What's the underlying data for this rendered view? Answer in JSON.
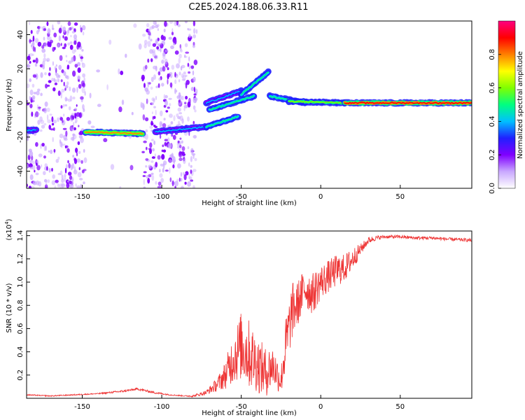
{
  "figure": {
    "title": "C2E5.2024.188.06.33.R11"
  },
  "colors": {
    "snr_line": "#ee3333",
    "colormap": [
      "#ffffff",
      "#c9a8ff",
      "#8000ff",
      "#2020ff",
      "#00c0ff",
      "#00ff80",
      "#80ff00",
      "#ffff00",
      "#ff8000",
      "#ff0000",
      "#ff0080"
    ]
  },
  "chart_data": [
    {
      "type": "heatmap",
      "xlabel": "Height of straight line (km)",
      "ylabel": "Frequency (Hz)",
      "xlim": [
        -185,
        95
      ],
      "ylim": [
        -50,
        48
      ],
      "xticks": [
        -150,
        -100,
        -50,
        0,
        50
      ],
      "xtick_labels": [
        "-150",
        "-100",
        "-50",
        "0",
        "50"
      ],
      "yticks": [
        -40,
        -20,
        0,
        20,
        40
      ],
      "ytick_labels": [
        "-40",
        "-20",
        "0",
        "20",
        "40"
      ],
      "colorbar": {
        "label": "Normalized spectral amplitude",
        "range": [
          0,
          1
        ],
        "ticks": [
          0.0,
          0.2,
          0.4,
          0.6,
          0.8
        ],
        "tick_labels": [
          "0.0",
          "0.2",
          "0.4",
          "0.6",
          "0.8"
        ]
      },
      "noise_regions": [
        {
          "x": [
            -185,
            -148
          ],
          "y": [
            -50,
            48
          ],
          "density": 0.9
        },
        {
          "x": [
            -148,
            -112
          ],
          "y": [
            -50,
            48
          ],
          "density": 0.05
        },
        {
          "x": [
            -112,
            -78
          ],
          "y": [
            -50,
            48
          ],
          "density": 0.9
        }
      ],
      "traces": [
        {
          "x": [
            -185,
            -179
          ],
          "y": [
            -16,
            -16
          ],
          "amplitude": 0.35
        },
        {
          "x": [
            -148,
            -112
          ],
          "y": [
            -17,
            -18
          ],
          "amplitude": 0.75
        },
        {
          "x": [
            -104,
            -72
          ],
          "y": [
            -17,
            -14
          ],
          "amplitude": 0.35
        },
        {
          "x": [
            -72,
            -52
          ],
          "y": [
            -14,
            -8
          ],
          "amplitude": 0.45
        },
        {
          "x": [
            -70,
            -42
          ],
          "y": [
            -4,
            4
          ],
          "amplitude": 0.45
        },
        {
          "x": [
            -72,
            -50
          ],
          "y": [
            0,
            7
          ],
          "amplitude": 0.4
        },
        {
          "x": [
            -50,
            -33
          ],
          "y": [
            5,
            18
          ],
          "amplitude": 0.45
        },
        {
          "x": [
            -32,
            -10
          ],
          "y": [
            4,
            0
          ],
          "amplitude": 0.5
        },
        {
          "x": [
            -20,
            15
          ],
          "y": [
            1,
            0
          ],
          "amplitude": 0.55
        },
        {
          "x": [
            15,
            95
          ],
          "y": [
            0,
            0
          ],
          "amplitude": 0.9
        }
      ]
    },
    {
      "type": "line",
      "xlabel": "Height of straight line (km)",
      "ylabel": "SNR (10 * v/v)",
      "y_multiplier": "(x10",
      "y_multiplier_exp": "4",
      "y_multiplier_close": ")",
      "xlim": [
        -185,
        95
      ],
      "ylim": [
        0,
        1.44
      ],
      "xticks": [
        -150,
        -100,
        -50,
        0,
        50
      ],
      "xtick_labels": [
        "-150",
        "-100",
        "-50",
        "0",
        "50"
      ],
      "yticks": [
        0.2,
        0.4,
        0.6,
        0.8,
        1.0,
        1.2,
        1.4
      ],
      "ytick_labels": [
        "0.2",
        "0.4",
        "0.6",
        "0.8",
        "1.0",
        "1.2",
        "1.4"
      ],
      "series": [
        {
          "x": [
            -185,
            -170,
            -155,
            -140,
            -125,
            -115,
            -105,
            -95,
            -85,
            -80,
            -72,
            -65,
            -60,
            -55,
            -50,
            -45,
            -40,
            -35,
            -30,
            -25,
            -22,
            -18,
            -15,
            -10,
            -5,
            0,
            5,
            10,
            15,
            20,
            25,
            30,
            35,
            40,
            50,
            60,
            70,
            80,
            95
          ],
          "y": [
            0.03,
            0.02,
            0.03,
            0.04,
            0.06,
            0.08,
            0.05,
            0.03,
            0.02,
            0.02,
            0.05,
            0.12,
            0.2,
            0.35,
            0.45,
            0.38,
            0.3,
            0.22,
            0.28,
            0.15,
            0.45,
            0.75,
            0.8,
            0.95,
            0.9,
            1.0,
            1.05,
            1.1,
            1.12,
            1.2,
            1.28,
            1.36,
            1.38,
            1.39,
            1.39,
            1.38,
            1.38,
            1.37,
            1.36
          ],
          "jitter": [
            0.005,
            0.005,
            0.005,
            0.005,
            0.01,
            0.01,
            0.01,
            0.005,
            0.005,
            0.01,
            0.02,
            0.06,
            0.12,
            0.22,
            0.3,
            0.3,
            0.25,
            0.22,
            0.18,
            0.12,
            0.25,
            0.25,
            0.2,
            0.18,
            0.18,
            0.15,
            0.14,
            0.14,
            0.12,
            0.1,
            0.05,
            0.03,
            0.02,
            0.015,
            0.015,
            0.015,
            0.015,
            0.015,
            0.015
          ]
        }
      ]
    }
  ]
}
